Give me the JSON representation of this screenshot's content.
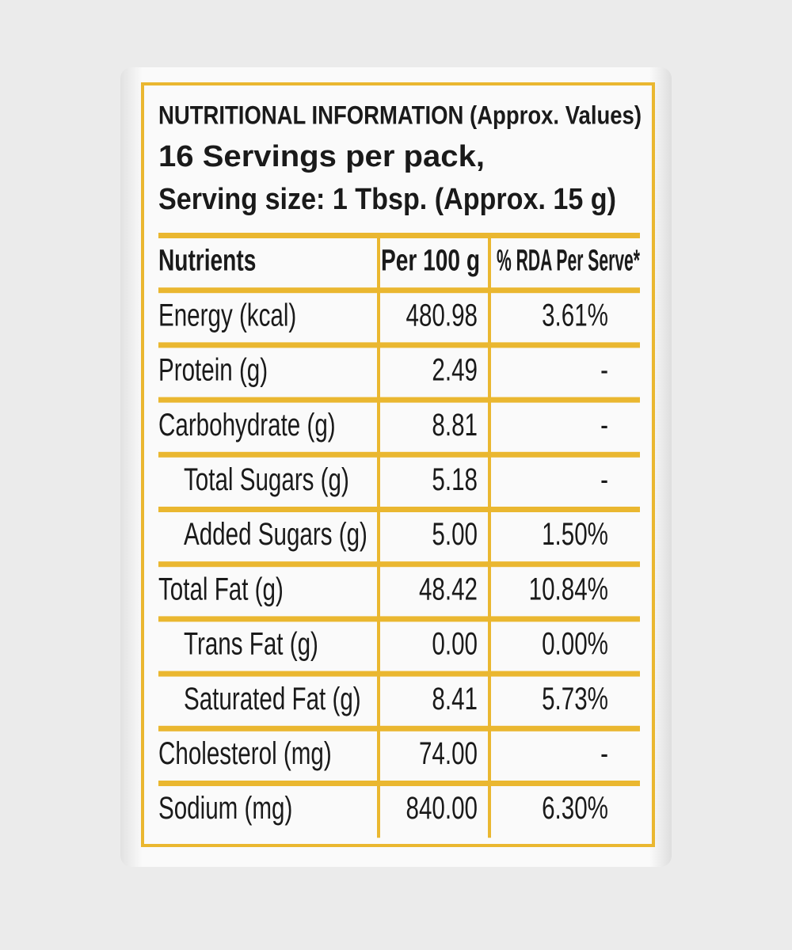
{
  "header": {
    "title": "NUTRITIONAL INFORMATION (Approx. Values)",
    "servings": "16 Servings per pack,",
    "serving_size": "Serving size: 1 Tbsp. (Approx. 15 g)"
  },
  "table": {
    "columns": [
      "Nutrients",
      "Per 100 g",
      "% RDA Per Serve*"
    ],
    "rows": [
      [
        "Energy (kcal)",
        "480.98",
        "3.61%"
      ],
      [
        "Protein (g)",
        "2.49",
        "-"
      ],
      [
        "Carbohydrate (g)",
        "8.81",
        "-"
      ],
      [
        "Total Sugars (g)",
        "5.18",
        "-"
      ],
      [
        "Added Sugars (g)",
        "5.00",
        "1.50%"
      ],
      [
        "Total Fat (g)",
        "48.42",
        "10.84%"
      ],
      [
        "Trans Fat (g)",
        "0.00",
        "0.00%"
      ],
      [
        "Saturated Fat (g)",
        "8.41",
        "5.73%"
      ],
      [
        "Cholesterol (mg)",
        "74.00",
        "-"
      ],
      [
        "Sodium (mg)",
        "840.00",
        "6.30%"
      ]
    ]
  }
}
